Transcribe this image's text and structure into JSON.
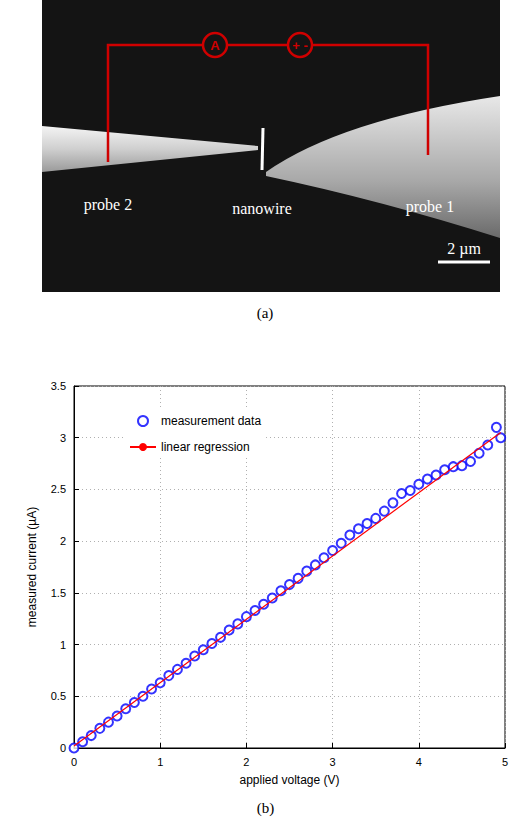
{
  "panel_a": {
    "caption": "(a)",
    "probe_left": "probe 2",
    "nanowire": "nanowire",
    "probe_right": "probe 1",
    "ammeter": "A",
    "source": "+ -",
    "scale_bar": "2 µm"
  },
  "chart_data": {
    "caption": "(b)",
    "type": "scatter",
    "x_label": "applied voltage (V)",
    "y_label": "measured current (µA)",
    "xlim": [
      0,
      5
    ],
    "xticks": [
      0,
      1,
      2,
      3,
      4,
      5
    ],
    "ylim": [
      0,
      3.5
    ],
    "yticks": [
      0,
      0.5,
      1,
      1.5,
      2,
      2.5,
      3,
      3.5
    ],
    "grid": true,
    "legend": "upper left",
    "series": [
      {
        "name": "measurement data",
        "type": "scatter",
        "color": "#0000ff",
        "marker": "circle-open",
        "x": [
          0,
          0.1,
          0.2,
          0.3,
          0.4,
          0.5,
          0.6,
          0.7,
          0.8,
          0.9,
          1.0,
          1.1,
          1.2,
          1.3,
          1.4,
          1.5,
          1.6,
          1.7,
          1.8,
          1.9,
          2.0,
          2.1,
          2.2,
          2.3,
          2.4,
          2.5,
          2.6,
          2.7,
          2.8,
          2.9,
          3.0,
          3.1,
          3.2,
          3.3,
          3.4,
          3.5,
          3.6,
          3.7,
          3.8,
          3.9,
          4.0,
          4.1,
          4.2,
          4.3,
          4.4,
          4.5,
          4.6,
          4.7,
          4.8,
          4.9,
          4.95
        ],
        "values": [
          0.0,
          0.06,
          0.12,
          0.19,
          0.25,
          0.31,
          0.38,
          0.44,
          0.5,
          0.57,
          0.63,
          0.7,
          0.76,
          0.82,
          0.89,
          0.95,
          1.01,
          1.07,
          1.14,
          1.2,
          1.27,
          1.33,
          1.39,
          1.45,
          1.52,
          1.58,
          1.64,
          1.71,
          1.77,
          1.84,
          1.91,
          1.98,
          2.06,
          2.12,
          2.17,
          2.22,
          2.29,
          2.37,
          2.46,
          2.49,
          2.55,
          2.6,
          2.64,
          2.69,
          2.72,
          2.73,
          2.77,
          2.85,
          2.93,
          3.1,
          3.0
        ]
      },
      {
        "name": "linear regression",
        "type": "line",
        "color": "#ff0000",
        "line_style": "solid",
        "x": [
          0,
          4.95
        ],
        "values": [
          0.02,
          3.05
        ]
      }
    ]
  }
}
